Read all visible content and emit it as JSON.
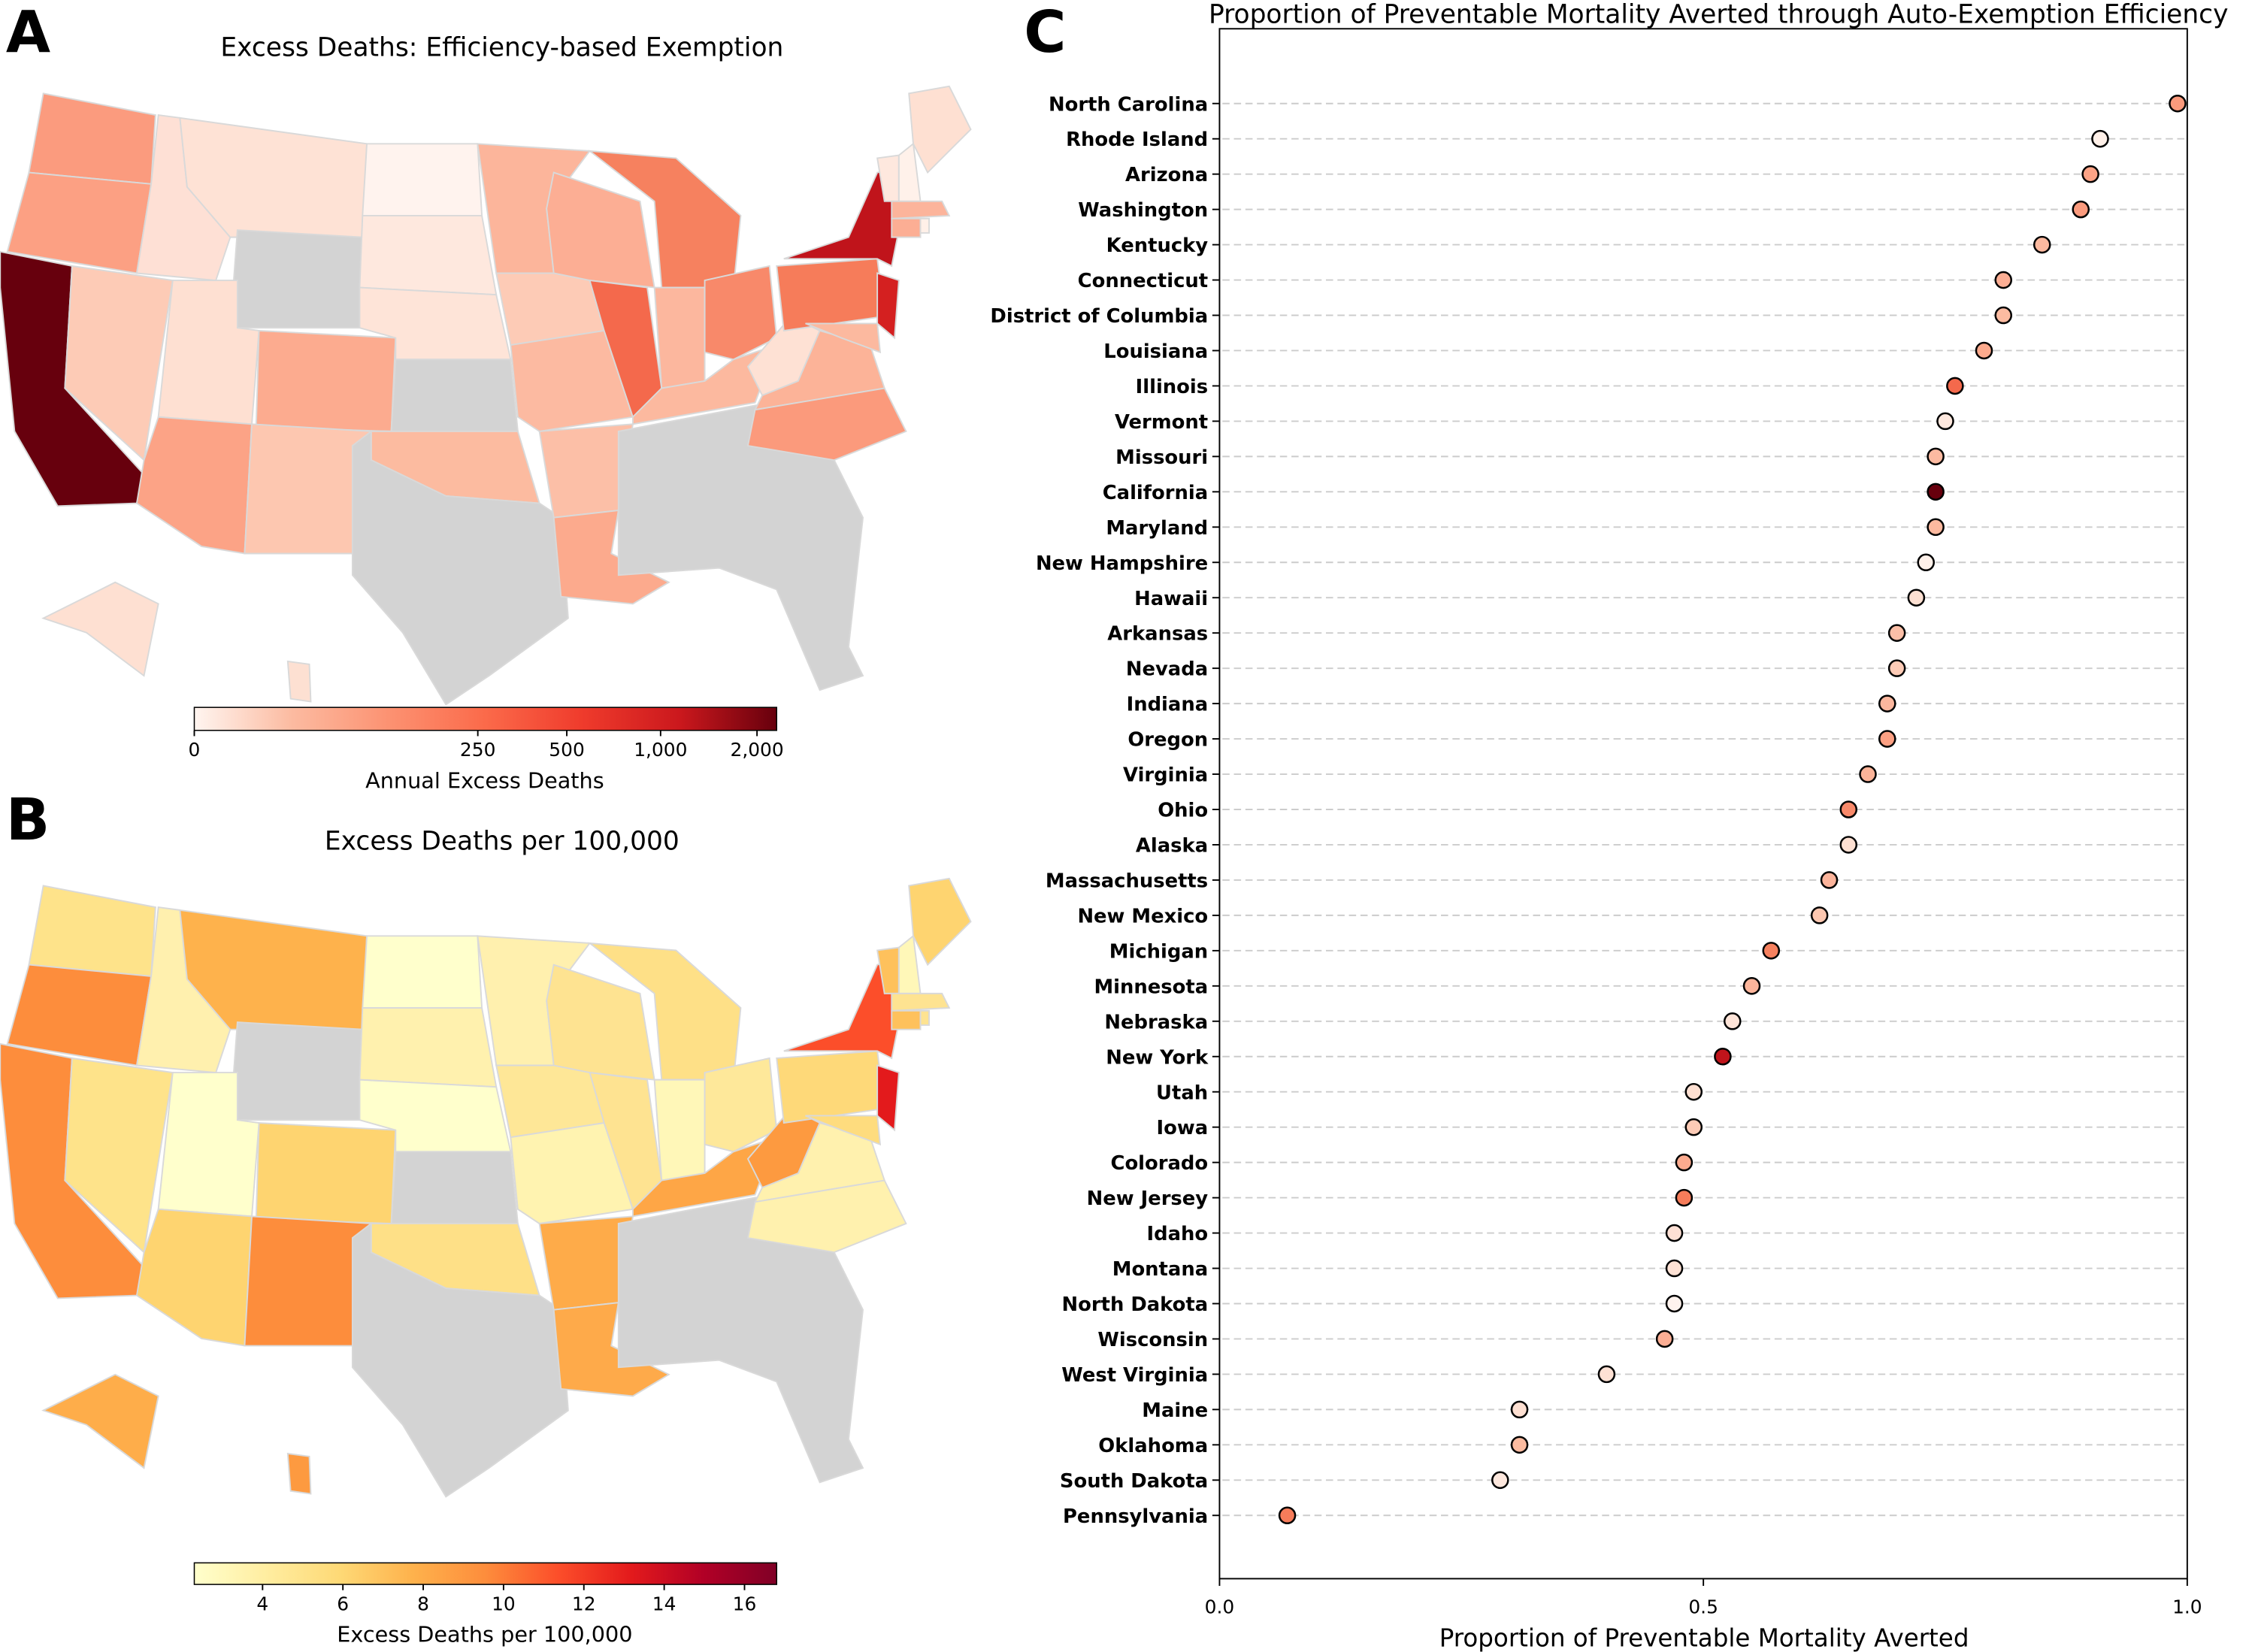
{
  "panels": {
    "a": {
      "letter": "A",
      "title": "Excess Deaths: Efficiency-based Exemption",
      "colorbar": {
        "label": "Annual Excess Deaths",
        "ticks": [
          "0",
          "250",
          "500",
          "1,000",
          "2,000"
        ],
        "tick_values": [
          0,
          250,
          500,
          1000,
          2000
        ],
        "scale": "symlog",
        "colormap": "Reds",
        "colors": [
          "#fff5f0",
          "#fcbba1",
          "#fc9272",
          "#fb6a4a",
          "#ef3b2c",
          "#cb181d",
          "#67000d"
        ]
      }
    },
    "b": {
      "letter": "B",
      "title": "Excess Deaths per 100,000",
      "colorbar": {
        "label": "Excess Deaths per 100,000",
        "ticks": [
          "4",
          "6",
          "8",
          "10",
          "12",
          "14",
          "16"
        ],
        "tick_values": [
          4,
          6,
          8,
          10,
          12,
          14,
          16
        ],
        "range": [
          2.3,
          16.8
        ],
        "colormap": "YlOrRd",
        "colors": [
          "#ffffcc",
          "#ffeda0",
          "#fed976",
          "#feb24c",
          "#fd8d3c",
          "#fc4e2a",
          "#e31a1c",
          "#b10026",
          "#800026"
        ]
      }
    },
    "c": {
      "letter": "C"
    }
  },
  "no_data_color": "#d3d3d3",
  "state_colors": {
    "WA": {
      "a": "#fb9b7e",
      "b": "#fee38a"
    },
    "OR": {
      "a": "#fca083",
      "b": "#fd8d3c"
    },
    "CA": {
      "a": "#67000d",
      "b": "#fd8d3c"
    },
    "NV": {
      "a": "#fdcbb6",
      "b": "#fee38a"
    },
    "ID": {
      "a": "#fee0d5",
      "b": "#fff0ae"
    },
    "MT": {
      "a": "#fee2d5",
      "b": "#feb24c"
    },
    "WY": {
      "a": null,
      "b": null
    },
    "UT": {
      "a": "#fee0d2",
      "b": "#ffffcc"
    },
    "CO": {
      "a": "#fcab8f",
      "b": "#fed470"
    },
    "AZ": {
      "a": "#fca386",
      "b": "#fed470"
    },
    "NM": {
      "a": "#fdc7b0",
      "b": "#fd8d3c"
    },
    "ND": {
      "a": "#fff3ee",
      "b": "#ffffcc"
    },
    "SD": {
      "a": "#fee8de",
      "b": "#fff1ae"
    },
    "NE": {
      "a": "#fee4d8",
      "b": "#ffffcc"
    },
    "KS": {
      "a": null,
      "b": null
    },
    "OK": {
      "a": "#fcbba0",
      "b": "#fee087"
    },
    "TX": {
      "a": null,
      "b": null
    },
    "MN": {
      "a": "#fcb59b",
      "b": "#fff0ae"
    },
    "IA": {
      "a": "#fdcbb6",
      "b": "#fee797"
    },
    "MO": {
      "a": "#fcbaa1",
      "b": "#fff3b0"
    },
    "AR": {
      "a": "#fcbfa7",
      "b": "#feab49"
    },
    "LA": {
      "a": "#fcaa8d",
      "b": "#feaa4a"
    },
    "WI": {
      "a": "#fcae94",
      "b": "#fee391"
    },
    "IL": {
      "a": "#f4694c",
      "b": "#fee391"
    },
    "MI": {
      "a": "#f6815f",
      "b": "#fee087"
    },
    "IN": {
      "a": "#fcb79e",
      "b": "#fff7b8"
    },
    "OH": {
      "a": "#f8896a",
      "b": "#fee89a"
    },
    "KY": {
      "a": "#fcb99f",
      "b": "#fea646"
    },
    "SE": {
      "a": null,
      "b": null
    },
    "WV": {
      "a": "#fee1d4",
      "b": "#fd9a40"
    },
    "VA": {
      "a": "#fcb398",
      "b": "#fff1ae"
    },
    "NC": {
      "a": "#fb9a7c",
      "b": "#fff1ae"
    },
    "PA": {
      "a": "#f67c5a",
      "b": "#fed979"
    },
    "NY": {
      "a": "#c0141b",
      "b": "#fc4e2a"
    },
    "NJ": {
      "a": "#d42020",
      "b": "#e31a1c"
    },
    "MD": {
      "a": "#fcb99f",
      "b": "#fedc7e"
    },
    "VT": {
      "a": "#fee8de",
      "b": "#fec15c"
    },
    "NH": {
      "a": "#fff1ea",
      "b": "#fff7b8"
    },
    "ME": {
      "a": "#fee0d2",
      "b": "#fed470"
    },
    "MA": {
      "a": "#fcb49b",
      "b": "#fee391"
    },
    "CT": {
      "a": "#fcae94",
      "b": "#fec15c"
    },
    "RI": {
      "a": "#fff0e8",
      "b": "#fee391"
    },
    "AK": {
      "a": "#fee0d2",
      "b": "#fead4a"
    },
    "HI": {
      "a": "#fde0d2",
      "b": "#fd9a40"
    }
  },
  "chart_data": {
    "type": "scatter",
    "title": "Proportion of Preventable Mortality Averted through Auto-Exemption Efficiency",
    "xlabel": "Proportion of Preventable Mortality Averted",
    "ylabel": "",
    "xlim": [
      0.0,
      1.0
    ],
    "xticks": [
      "0.0",
      "0.5",
      "1.0"
    ],
    "grid": "horizontal dashed",
    "categories": [
      "North Carolina",
      "Rhode Island",
      "Arizona",
      "Washington",
      "Kentucky",
      "Connecticut",
      "District of Columbia",
      "Louisiana",
      "Illinois",
      "Vermont",
      "Missouri",
      "California",
      "Maryland",
      "New Hampshire",
      "Hawaii",
      "Arkansas",
      "Nevada",
      "Indiana",
      "Oregon",
      "Virginia",
      "Ohio",
      "Alaska",
      "Massachusetts",
      "New Mexico",
      "Michigan",
      "Minnesota",
      "Nebraska",
      "New York",
      "Utah",
      "Iowa",
      "Colorado",
      "New Jersey",
      "Idaho",
      "Montana",
      "North Dakota",
      "Wisconsin",
      "West Virginia",
      "Maine",
      "Oklahoma",
      "South Dakota",
      "Pennsylvania"
    ],
    "values": [
      0.99,
      0.91,
      0.9,
      0.89,
      0.85,
      0.81,
      0.81,
      0.79,
      0.76,
      0.75,
      0.74,
      0.74,
      0.74,
      0.73,
      0.72,
      0.7,
      0.7,
      0.69,
      0.69,
      0.67,
      0.65,
      0.65,
      0.63,
      0.62,
      0.57,
      0.55,
      0.53,
      0.52,
      0.49,
      0.49,
      0.48,
      0.48,
      0.47,
      0.47,
      0.47,
      0.46,
      0.4,
      0.31,
      0.31,
      0.29,
      0.07
    ],
    "point_colors": [
      "#fb9a7c",
      "#fff0e8",
      "#fca386",
      "#fb9b7e",
      "#fcb99f",
      "#fcae94",
      "#fcbba1",
      "#fcaa8d",
      "#f4694c",
      "#fee8de",
      "#fcbaa1",
      "#67000d",
      "#fcb99f",
      "#fff1ea",
      "#fde0d2",
      "#fcbfa7",
      "#fdcbb6",
      "#fcb79e",
      "#fca083",
      "#fcb398",
      "#f8896a",
      "#fee0d2",
      "#fcb49b",
      "#fdc7b0",
      "#f6815f",
      "#fcb59b",
      "#fee4d8",
      "#c0141b",
      "#fee0d2",
      "#fdcbb6",
      "#fcab8f",
      "#f67c5a",
      "#fee0d5",
      "#fee2d5",
      "#fff3ee",
      "#fcae94",
      "#fee1d4",
      "#fee0d2",
      "#fcbba0",
      "#fee8de",
      "#f67c5a"
    ]
  }
}
